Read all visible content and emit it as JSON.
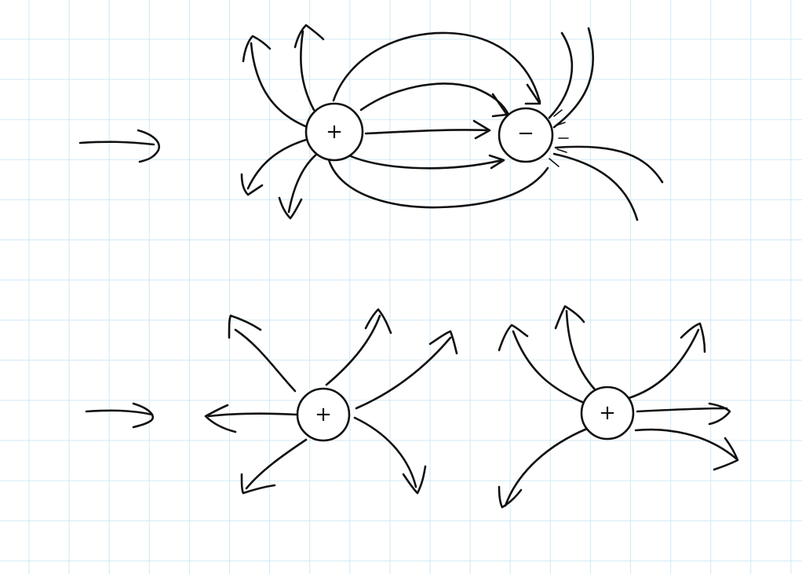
{
  "background": {
    "paper": "#ffffff",
    "grid": "#cfe9f5",
    "ink": "#111111"
  },
  "rows": [
    {
      "name": "dipole-row",
      "charges": [
        {
          "name": "positive-charge",
          "sign": "+"
        },
        {
          "name": "negative-charge",
          "sign": "−"
        }
      ]
    },
    {
      "name": "two-positive-row",
      "charges": [
        {
          "name": "positive-charge-left",
          "sign": "+"
        },
        {
          "name": "positive-charge-right",
          "sign": "+"
        }
      ]
    }
  ]
}
